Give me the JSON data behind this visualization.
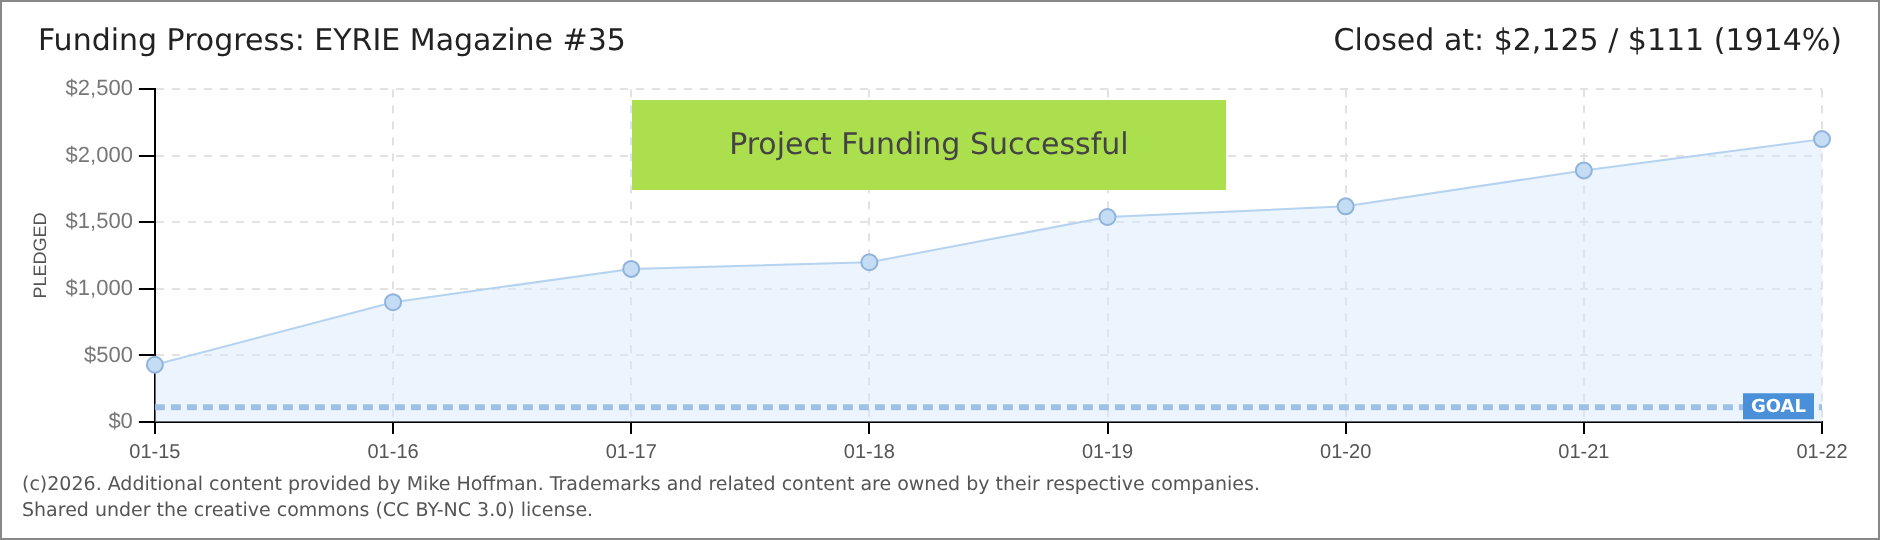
{
  "chart_data": {
    "type": "area",
    "title": "Funding Progress: EYRIE Magazine #35",
    "ylabel": "PLEDGED",
    "categories": [
      "01-15",
      "01-16",
      "01-17",
      "01-18",
      "01-19",
      "01-20",
      "01-21",
      "01-22"
    ],
    "series": [
      {
        "color": "#b5d3f0",
        "values": [
          430,
          900,
          1150,
          1200,
          1540,
          1620,
          1890,
          2125
        ]
      }
    ],
    "ylim": [
      0,
      2500
    ],
    "yticks": [
      {
        "value": 0,
        "label": "$0"
      },
      {
        "value": 500,
        "label": "$500"
      },
      {
        "value": 1000,
        "label": "$1,000"
      },
      {
        "value": 1500,
        "label": "$1,500"
      },
      {
        "value": 2000,
        "label": "$2,000"
      },
      {
        "value": 2500,
        "label": "$2,500"
      }
    ],
    "grid": true,
    "legend": false,
    "marker": "circle",
    "line_style": "solid",
    "ref_lines": [
      {
        "axis": "y",
        "value": 111,
        "label": "GOAL",
        "color": "#9ec0e6",
        "line_style": "dashed"
      }
    ],
    "annotations": [
      "Project Funding Successful",
      "Closed at: $2,125 / $111 (1914%)",
      "(c)2026. Additional content provided by Mike Hoffman. Trademarks and related content are owned by their respective companies.",
      "Shared under the creative commons (CC BY-NC 3.0) license."
    ]
  }
}
